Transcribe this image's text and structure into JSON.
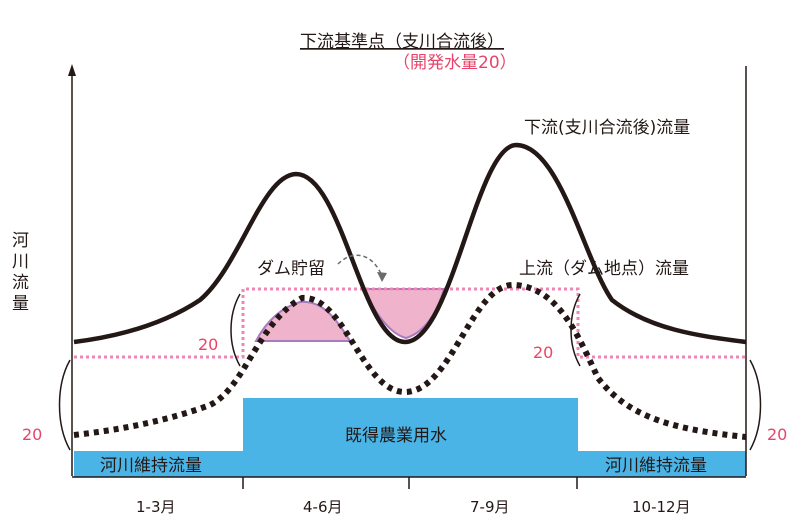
{
  "title": {
    "main": "下流基準点（支川合流後）",
    "sub": "（開発水量20）"
  },
  "y_axis_label": [
    "河",
    "川",
    "流",
    "量"
  ],
  "curves": {
    "downstream_label": "下流(支川合流後)流量",
    "upstream_label": "上流（ダム地点）流量",
    "dam_storage_label": "ダム貯留"
  },
  "blocks": {
    "agri_label": "既得農業用水",
    "maintenance_left": "河川維持流量",
    "maintenance_right": "河川維持流量"
  },
  "values": {
    "left_inner": "20",
    "left_outer": "20",
    "right_inner": "20",
    "right_outer": "20"
  },
  "x_axis": {
    "ticks": [
      "1-3月",
      "4-6月",
      "7-9月",
      "10-12月"
    ]
  },
  "colors": {
    "blue": "#4ab4e6",
    "pink_fill": "#f0b3cc",
    "pink_dotted": "#ee87b4",
    "red_text": "#e8446a",
    "ink": "#231815"
  }
}
